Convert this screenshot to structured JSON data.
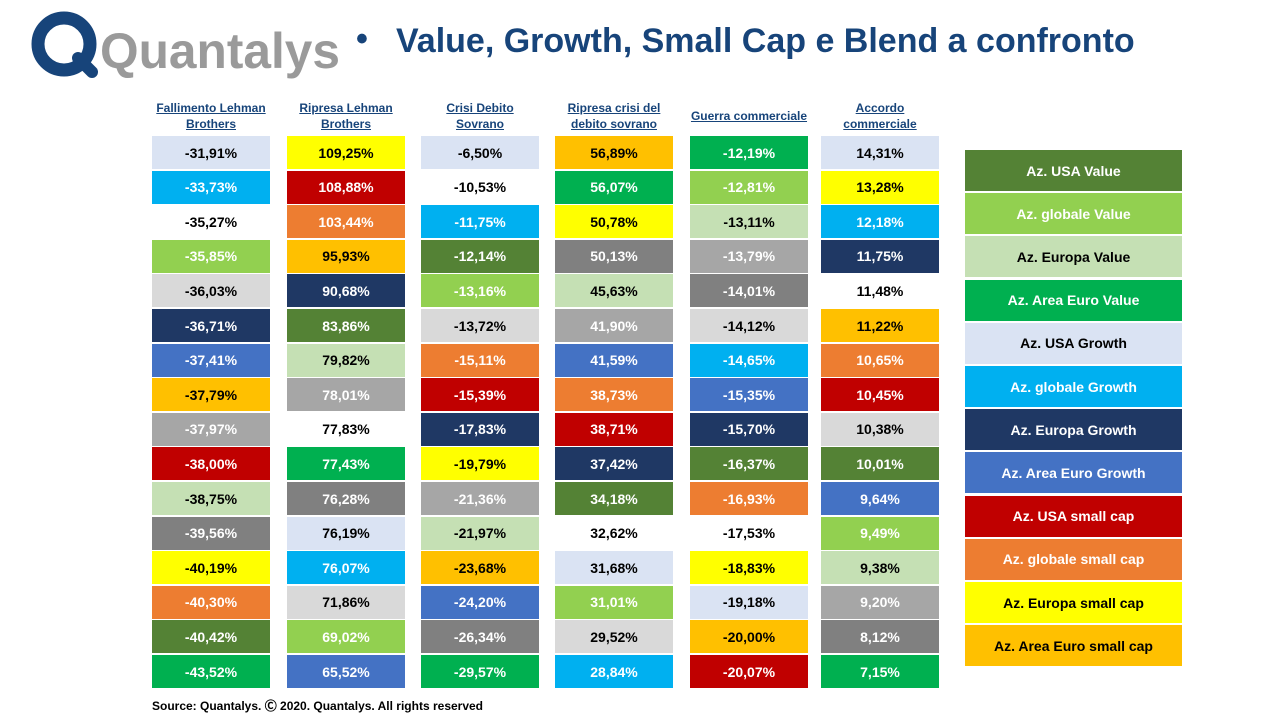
{
  "header": {
    "brand": "Quantalys",
    "bullet": "•",
    "title": "Value, Growth, Small Cap e Blend a confronto"
  },
  "colors": {
    "title": "#17447a",
    "Az. USA Value": "#548235",
    "Az. globale Value": "#92d050",
    "Az. Europa Value": "#c5e0b4",
    "Az. Area Euro Value": "#00b050",
    "Az. USA Growth": "#dae3f3",
    "Az. globale Growth": "#00b0f0",
    "Az. Europa Growth": "#1f3864",
    "Az. Area Euro Growth": "#4472c4",
    "Az. USA small cap": "#c00000",
    "Az. globale small cap": "#ed7d31",
    "Az. Europa small cap": "#ffff00",
    "Az. Area Euro small cap": "#ffc000",
    "Blend light grey": "#d9d9d9",
    "Blend mid grey": "#a6a6a6",
    "Blend dark grey": "#808080",
    "white": "#ffffff"
  },
  "chart_data": {
    "type": "table",
    "legend": [
      "Az. USA Value",
      "Az. globale Value",
      "Az. Europa Value",
      "Az. Area Euro Value",
      "Az. USA Growth",
      "Az. globale Growth",
      "Az. Europa Growth",
      "Az. Area Euro Growth",
      "Az. USA small cap",
      "Az. globale small cap",
      "Az. Europa small cap",
      "Az. Area Euro small cap"
    ],
    "columns": [
      {
        "header": "Fallimento Lehman Brothers",
        "cells": [
          {
            "value": "-31,91%",
            "color": "#dae3f3"
          },
          {
            "value": "-33,73%",
            "color": "#00b0f0"
          },
          {
            "value": "-35,27%",
            "color": "#ffffff"
          },
          {
            "value": "-35,85%",
            "color": "#92d050"
          },
          {
            "value": "-36,03%",
            "color": "#d9d9d9"
          },
          {
            "value": "-36,71%",
            "color": "#1f3864"
          },
          {
            "value": "-37,41%",
            "color": "#4472c4"
          },
          {
            "value": "-37,79%",
            "color": "#ffc000"
          },
          {
            "value": "-37,97%",
            "color": "#a6a6a6"
          },
          {
            "value": "-38,00%",
            "color": "#c00000"
          },
          {
            "value": "-38,75%",
            "color": "#c5e0b4"
          },
          {
            "value": "-39,56%",
            "color": "#808080"
          },
          {
            "value": "-40,19%",
            "color": "#ffff00"
          },
          {
            "value": "-40,30%",
            "color": "#ed7d31"
          },
          {
            "value": "-40,42%",
            "color": "#548235"
          },
          {
            "value": "-43,52%",
            "color": "#00b050"
          }
        ]
      },
      {
        "header": "Ripresa Lehman Brothers",
        "cells": [
          {
            "value": "109,25%",
            "color": "#ffff00"
          },
          {
            "value": "108,88%",
            "color": "#c00000"
          },
          {
            "value": "103,44%",
            "color": "#ed7d31"
          },
          {
            "value": "95,93%",
            "color": "#ffc000"
          },
          {
            "value": "90,68%",
            "color": "#1f3864"
          },
          {
            "value": "83,86%",
            "color": "#548235"
          },
          {
            "value": "79,82%",
            "color": "#c5e0b4"
          },
          {
            "value": "78,01%",
            "color": "#a6a6a6"
          },
          {
            "value": "77,83%",
            "color": "#ffffff"
          },
          {
            "value": "77,43%",
            "color": "#00b050"
          },
          {
            "value": "76,28%",
            "color": "#808080"
          },
          {
            "value": "76,19%",
            "color": "#dae3f3"
          },
          {
            "value": "76,07%",
            "color": "#00b0f0"
          },
          {
            "value": "71,86%",
            "color": "#d9d9d9"
          },
          {
            "value": "69,02%",
            "color": "#92d050"
          },
          {
            "value": "65,52%",
            "color": "#4472c4"
          }
        ]
      },
      {
        "header": "Crisi Debito Sovrano",
        "cells": [
          {
            "value": "-6,50%",
            "color": "#dae3f3"
          },
          {
            "value": "-10,53%",
            "color": "#ffffff"
          },
          {
            "value": "-11,75%",
            "color": "#00b0f0"
          },
          {
            "value": "-12,14%",
            "color": "#548235"
          },
          {
            "value": "-13,16%",
            "color": "#92d050"
          },
          {
            "value": "-13,72%",
            "color": "#d9d9d9"
          },
          {
            "value": "-15,11%",
            "color": "#ed7d31"
          },
          {
            "value": "-15,39%",
            "color": "#c00000"
          },
          {
            "value": "-17,83%",
            "color": "#1f3864"
          },
          {
            "value": "-19,79%",
            "color": "#ffff00"
          },
          {
            "value": "-21,36%",
            "color": "#a6a6a6"
          },
          {
            "value": "-21,97%",
            "color": "#c5e0b4"
          },
          {
            "value": "-23,68%",
            "color": "#ffc000"
          },
          {
            "value": "-24,20%",
            "color": "#4472c4"
          },
          {
            "value": "-26,34%",
            "color": "#808080"
          },
          {
            "value": "-29,57%",
            "color": "#00b050"
          }
        ]
      },
      {
        "header": "Ripresa crisi del debito sovrano",
        "cells": [
          {
            "value": "56,89%",
            "color": "#ffc000"
          },
          {
            "value": "56,07%",
            "color": "#00b050"
          },
          {
            "value": "50,78%",
            "color": "#ffff00"
          },
          {
            "value": "50,13%",
            "color": "#808080"
          },
          {
            "value": "45,63%",
            "color": "#c5e0b4"
          },
          {
            "value": "41,90%",
            "color": "#a6a6a6"
          },
          {
            "value": "41,59%",
            "color": "#4472c4"
          },
          {
            "value": "38,73%",
            "color": "#ed7d31"
          },
          {
            "value": "38,71%",
            "color": "#c00000"
          },
          {
            "value": "37,42%",
            "color": "#1f3864"
          },
          {
            "value": "34,18%",
            "color": "#548235"
          },
          {
            "value": "32,62%",
            "color": "#ffffff"
          },
          {
            "value": "31,68%",
            "color": "#dae3f3"
          },
          {
            "value": "31,01%",
            "color": "#92d050"
          },
          {
            "value": "29,52%",
            "color": "#d9d9d9"
          },
          {
            "value": "28,84%",
            "color": "#00b0f0"
          }
        ]
      },
      {
        "header": "Guerra commerciale",
        "cells": [
          {
            "value": "-12,19%",
            "color": "#00b050"
          },
          {
            "value": "-12,81%",
            "color": "#92d050"
          },
          {
            "value": "-13,11%",
            "color": "#c5e0b4"
          },
          {
            "value": "-13,79%",
            "color": "#a6a6a6"
          },
          {
            "value": "-14,01%",
            "color": "#808080"
          },
          {
            "value": "-14,12%",
            "color": "#d9d9d9"
          },
          {
            "value": "-14,65%",
            "color": "#00b0f0"
          },
          {
            "value": "-15,35%",
            "color": "#4472c4"
          },
          {
            "value": "-15,70%",
            "color": "#1f3864"
          },
          {
            "value": "-16,37%",
            "color": "#548235"
          },
          {
            "value": "-16,93%",
            "color": "#ed7d31"
          },
          {
            "value": "-17,53%",
            "color": "#ffffff"
          },
          {
            "value": "-18,83%",
            "color": "#ffff00"
          },
          {
            "value": "-19,18%",
            "color": "#dae3f3"
          },
          {
            "value": "-20,00%",
            "color": "#ffc000"
          },
          {
            "value": "-20,07%",
            "color": "#c00000"
          }
        ]
      },
      {
        "header": "Accordo commerciale",
        "cells": [
          {
            "value": "14,31%",
            "color": "#dae3f3"
          },
          {
            "value": "13,28%",
            "color": "#ffff00"
          },
          {
            "value": "12,18%",
            "color": "#00b0f0"
          },
          {
            "value": "11,75%",
            "color": "#1f3864"
          },
          {
            "value": "11,48%",
            "color": "#ffffff"
          },
          {
            "value": "11,22%",
            "color": "#ffc000"
          },
          {
            "value": "10,65%",
            "color": "#ed7d31"
          },
          {
            "value": "10,45%",
            "color": "#c00000"
          },
          {
            "value": "10,38%",
            "color": "#d9d9d9"
          },
          {
            "value": "10,01%",
            "color": "#548235"
          },
          {
            "value": "9,64%",
            "color": "#4472c4"
          },
          {
            "value": "9,49%",
            "color": "#92d050"
          },
          {
            "value": "9,38%",
            "color": "#c5e0b4"
          },
          {
            "value": "9,20%",
            "color": "#a6a6a6"
          },
          {
            "value": "8,12%",
            "color": "#808080"
          },
          {
            "value": "7,15%",
            "color": "#00b050"
          }
        ]
      }
    ]
  },
  "footer": {
    "source": "Source: Quantalys. Ⓒ 2020. Quantalys. All rights reserved"
  }
}
